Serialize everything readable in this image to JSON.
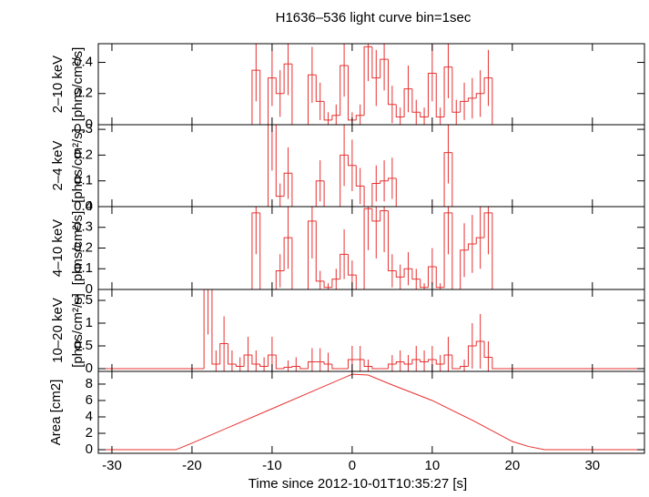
{
  "chart_data": [
    {
      "type": "step",
      "title": "H1636–536 light curve bin=1sec",
      "ylabel": [
        "2–10 keV",
        "[phns/cm²/s]"
      ],
      "color": "#e83030",
      "x": [
        -12,
        -11,
        -10,
        -9,
        -8,
        -7,
        -6,
        -5,
        -4,
        -3,
        -2,
        -1,
        0,
        1,
        2,
        3,
        4,
        5,
        6,
        7,
        8,
        9,
        10,
        11,
        12,
        13,
        14,
        15,
        16,
        17
      ],
      "values": [
        0.35,
        0,
        0.3,
        0.2,
        0.39,
        0,
        0,
        0.32,
        0.15,
        0.03,
        0.06,
        0.38,
        0.03,
        0.06,
        0.5,
        0.3,
        0.42,
        0.13,
        0.05,
        0.23,
        0.08,
        0.05,
        0.33,
        0.05,
        0.37,
        0.08,
        0.15,
        0.17,
        0.2,
        0.3
      ],
      "errors": [
        0.2,
        0,
        0.18,
        0.15,
        0.2,
        0,
        0,
        0.18,
        0.12,
        0.05,
        0.07,
        0.2,
        0.05,
        0.07,
        0.22,
        0.18,
        0.2,
        0.12,
        0.06,
        0.15,
        0.08,
        0.06,
        0.18,
        0.06,
        0.2,
        0.08,
        0.12,
        0.13,
        0.15,
        0.18
      ],
      "xlim": [
        -31.7,
        36.5
      ],
      "ylim": [
        0,
        0.52
      ],
      "yticks": [
        0,
        0.2,
        0.4
      ]
    },
    {
      "type": "step",
      "ylabel": [
        "2–4 keV",
        "[phns/cm²/s]"
      ],
      "color": "#e83030",
      "x": [
        -12,
        -11,
        -10,
        -9,
        -8,
        -7,
        -6,
        -5,
        -4,
        -3,
        -2,
        -1,
        0,
        1,
        2,
        3,
        4,
        5,
        6,
        7,
        8,
        9,
        10,
        11,
        12,
        13,
        14,
        15,
        16,
        17
      ],
      "values": [
        0,
        0,
        0.34,
        0.04,
        0.13,
        0,
        0,
        0,
        0.1,
        0,
        0,
        0.2,
        0.16,
        0.08,
        0,
        0.09,
        0.1,
        0.11,
        0,
        0,
        0,
        0,
        0,
        0,
        0.21,
        0,
        0,
        0,
        0,
        0
      ],
      "errors": [
        0,
        0,
        0.2,
        0.05,
        0.1,
        0,
        0,
        0,
        0.08,
        0,
        0,
        0.12,
        0.1,
        0.07,
        0,
        0.07,
        0.08,
        0.08,
        0,
        0,
        0,
        0,
        0,
        0,
        0.12,
        0,
        0,
        0,
        0,
        0
      ],
      "xlim": [
        -31.7,
        36.5
      ],
      "ylim": [
        0,
        0.318
      ],
      "yticks": [
        0,
        0.1,
        0.2,
        0.3
      ]
    },
    {
      "type": "step",
      "ylabel": [
        "4–10 keV",
        "[phns/cm²/s]"
      ],
      "color": "#e83030",
      "x": [
        -12,
        -11,
        -10,
        -9,
        -8,
        -7,
        -6,
        -5,
        -4,
        -3,
        -2,
        -1,
        0,
        1,
        2,
        3,
        4,
        5,
        6,
        7,
        8,
        9,
        10,
        11,
        12,
        13,
        14,
        15,
        16,
        17
      ],
      "values": [
        0.37,
        0,
        0,
        0.09,
        0.25,
        0,
        0,
        0.33,
        0.04,
        0.01,
        0.05,
        0.17,
        0.07,
        0,
        0.39,
        0.33,
        0.38,
        0.09,
        0.06,
        0.1,
        0.05,
        0.01,
        0.11,
        0.01,
        0.37,
        0,
        0.19,
        0.22,
        0.25,
        0.37
      ],
      "errors": [
        0.2,
        0,
        0,
        0.08,
        0.15,
        0,
        0,
        0.18,
        0.05,
        0.02,
        0.05,
        0.12,
        0.07,
        0,
        0.2,
        0.18,
        0.2,
        0.08,
        0.06,
        0.08,
        0.05,
        0.02,
        0.09,
        0.02,
        0.2,
        0,
        0.13,
        0.14,
        0.15,
        0.2
      ],
      "xlim": [
        -31.7,
        36.5
      ],
      "ylim": [
        0,
        0.4
      ],
      "yticks": [
        0,
        0.1,
        0.2,
        0.3,
        0.4
      ]
    },
    {
      "type": "step",
      "ylabel": [
        "10–20 keV",
        "[phns/cm²/s]"
      ],
      "color": "#e83030",
      "x": [
        -18,
        -17,
        -16,
        -15,
        -14,
        -13,
        -12,
        -11,
        -10,
        -9,
        -8,
        -7,
        -6,
        -5,
        -4,
        -3,
        -2,
        -1,
        0,
        1,
        2,
        3,
        4,
        5,
        6,
        7,
        8,
        9,
        10,
        11,
        12,
        13,
        14,
        15,
        16,
        17
      ],
      "values": [
        1.75,
        0.1,
        0.55,
        0.1,
        0.05,
        0.3,
        0.1,
        0.05,
        0.3,
        0,
        0.03,
        0.05,
        0,
        0.15,
        0.15,
        0.1,
        0,
        0,
        0.2,
        0.2,
        0.05,
        0,
        0,
        0.1,
        0.15,
        0.1,
        0.2,
        0.15,
        0.2,
        0.1,
        0.3,
        0,
        0.05,
        0.5,
        0.6,
        0.25
      ],
      "errors": [
        1,
        0.3,
        0.6,
        0.3,
        0.2,
        0.4,
        0.3,
        0.2,
        0.4,
        0,
        0.15,
        0.2,
        0,
        0.3,
        0.3,
        0.25,
        0,
        0,
        0.3,
        0.3,
        0.15,
        0,
        0,
        0.2,
        0.25,
        0.2,
        0.3,
        0.25,
        0.3,
        0.2,
        0.4,
        0,
        0.15,
        0.5,
        0.6,
        0.35
      ],
      "xlim": [
        -31.7,
        36.5
      ],
      "ylim": [
        -0.06,
        1.74
      ],
      "yticks": [
        0,
        0.5,
        1,
        1.5
      ]
    },
    {
      "type": "line",
      "ylabel": [
        "Area [cm2]"
      ],
      "color": "#e83030",
      "xlabel": "Time since 2012-10-01T10:35:27 [s]",
      "x": [
        -31.7,
        -22,
        -20,
        -15,
        -10,
        -5,
        0,
        2,
        5,
        10,
        15,
        20,
        22,
        24,
        36.5
      ],
      "values": [
        0,
        0,
        0.8,
        2.9,
        5,
        7.1,
        9.2,
        9.1,
        7.9,
        6,
        3.6,
        1,
        0.4,
        0,
        0
      ],
      "xlim": [
        -31.7,
        36.5
      ],
      "ylim": [
        -0.44,
        9.55
      ],
      "yticks": [
        0,
        2,
        4,
        6,
        8
      ],
      "xticks": [
        -30,
        -20,
        -10,
        0,
        10,
        20,
        30
      ]
    }
  ]
}
